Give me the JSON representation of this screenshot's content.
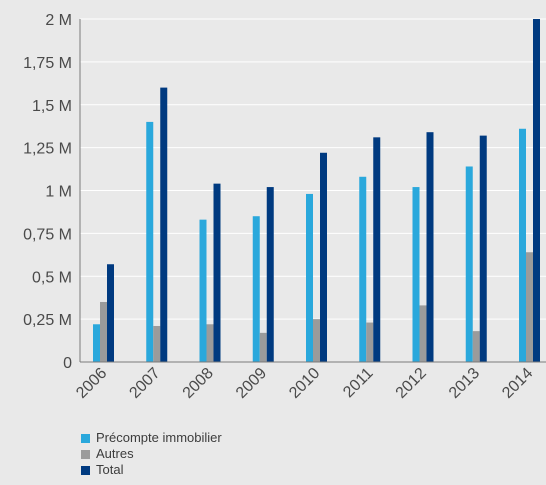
{
  "chart_data": {
    "type": "bar",
    "categories": [
      "2006",
      "2007",
      "2008",
      "2009",
      "2010",
      "2011",
      "2012",
      "2013",
      "2014"
    ],
    "series": [
      {
        "name": "Précompte immobilier",
        "color": "#2aa8dc",
        "values": [
          0.22,
          1.4,
          0.83,
          0.85,
          0.98,
          1.08,
          1.02,
          1.14,
          1.36
        ]
      },
      {
        "name": "Autres",
        "color": "#9b9b9b",
        "values": [
          0.35,
          0.21,
          0.22,
          0.17,
          0.25,
          0.23,
          0.33,
          0.18,
          0.64
        ]
      },
      {
        "name": "Total",
        "color": "#003a80",
        "values": [
          0.57,
          1.6,
          1.04,
          1.02,
          1.22,
          1.31,
          1.34,
          1.32,
          2.0
        ]
      }
    ],
    "y_ticks": [
      0,
      0.25,
      0.5,
      0.75,
      1,
      1.25,
      1.5,
      1.75,
      2
    ],
    "y_tick_labels": [
      "0",
      "0,25 M",
      "0,5 M",
      "0,75 M",
      "1 M",
      "1,25 M",
      "1,5 M",
      "1,75 M",
      "2 M"
    ],
    "ylim": [
      0,
      2
    ],
    "grid": true,
    "legend_position": "bottom-left"
  }
}
